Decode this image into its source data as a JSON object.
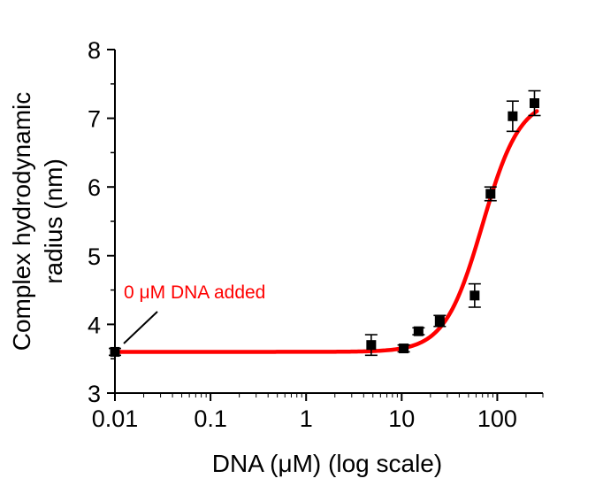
{
  "chart_data": {
    "type": "scatter",
    "title": "",
    "xlabel": "DNA (μM) (log scale)",
    "ylabel_lines": [
      "Complex hydrodynamic",
      "radius (nm)"
    ],
    "x_scale": "log",
    "xlim": [
      0.01,
      300
    ],
    "ylim": [
      3,
      8
    ],
    "x_ticks": [
      0.01,
      0.1,
      1,
      10,
      100
    ],
    "x_tick_labels": [
      "0.01",
      "0.1",
      "1",
      "10",
      "100"
    ],
    "y_ticks": [
      3,
      4,
      5,
      6,
      7,
      8
    ],
    "y_tick_labels": [
      "3",
      "4",
      "5",
      "6",
      "7",
      "8"
    ],
    "grid": false,
    "series": [
      {
        "type": "scatter",
        "color": "#000000",
        "points": [
          {
            "x": 0.01,
            "y": 3.6,
            "err": 0.05
          },
          {
            "x": 4.8,
            "y": 3.7,
            "err": 0.15
          },
          {
            "x": 10.5,
            "y": 3.65,
            "err": 0.05
          },
          {
            "x": 15,
            "y": 3.9,
            "err": 0.05
          },
          {
            "x": 25,
            "y": 4.05,
            "err": 0.08
          },
          {
            "x": 58,
            "y": 4.42,
            "err": 0.17
          },
          {
            "x": 85,
            "y": 5.9,
            "err": 0.1
          },
          {
            "x": 145,
            "y": 7.03,
            "err": 0.22
          },
          {
            "x": 245,
            "y": 7.22,
            "err": 0.18
          }
        ]
      },
      {
        "type": "line",
        "color": "#ff0000",
        "fit": {
          "model": "hill",
          "bottom": 3.6,
          "top": 7.3,
          "ec50": 70,
          "hill": 2.2
        }
      }
    ],
    "annotations": [
      {
        "text": "0 μM DNA added",
        "color": "#ff0000"
      }
    ]
  }
}
